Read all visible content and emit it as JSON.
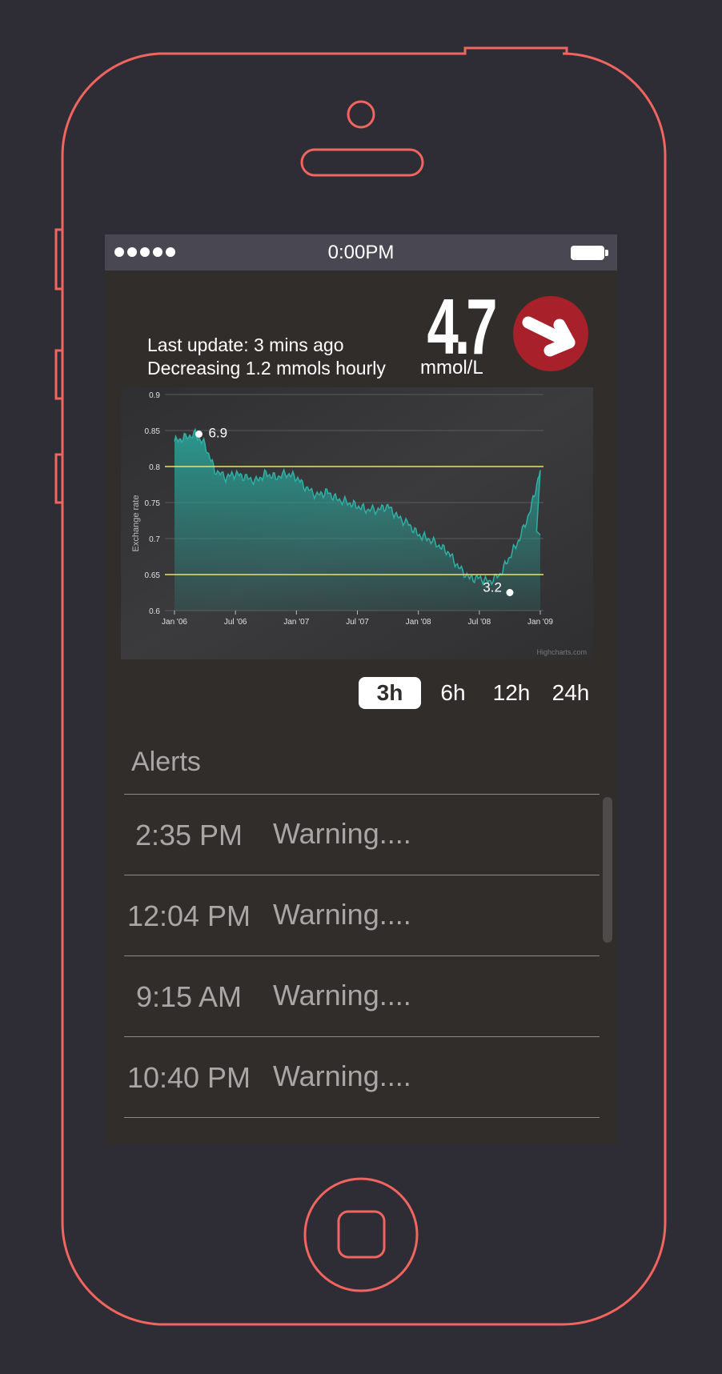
{
  "status_bar": {
    "time": "0:00PM",
    "signal_bars": 5
  },
  "reading": {
    "last_update": "Last update: 3 mins ago",
    "trend_text": "Decreasing 1.2 mmols hourly",
    "value": "4.7",
    "unit": "mmol/L",
    "trend_icon": "arrow-down-right-icon"
  },
  "chart_data": {
    "type": "area",
    "ylabel": "Exchange rate",
    "credit": "Highcharts.com",
    "x_ticks": [
      "Jan '06",
      "Jul '06",
      "Jan '07",
      "Jul '07",
      "Jan '08",
      "Jul '08",
      "Jan '09"
    ],
    "ylim": [
      0.6,
      0.9
    ],
    "y_ticks": [
      "0.9",
      "0.85",
      "0.8",
      "0.75",
      "0.7",
      "0.65",
      "0.6"
    ],
    "threshold_lines": [
      0.8,
      0.65
    ],
    "x": [
      2006.0,
      2006.08,
      2006.17,
      2006.25,
      2006.33,
      2006.42,
      2006.5,
      2006.58,
      2006.67,
      2006.75,
      2006.83,
      2006.92,
      2007.0,
      2007.08,
      2007.17,
      2007.25,
      2007.33,
      2007.42,
      2007.5,
      2007.58,
      2007.67,
      2007.75,
      2007.83,
      2007.92,
      2008.0,
      2008.08,
      2008.17,
      2008.25,
      2008.33,
      2008.42,
      2008.5,
      2008.58,
      2008.67,
      2008.75,
      2008.83,
      2008.92,
      2009.0
    ],
    "y": [
      0.835,
      0.84,
      0.845,
      0.83,
      0.795,
      0.785,
      0.79,
      0.785,
      0.78,
      0.79,
      0.785,
      0.79,
      0.785,
      0.77,
      0.76,
      0.765,
      0.755,
      0.75,
      0.745,
      0.74,
      0.74,
      0.745,
      0.73,
      0.72,
      0.705,
      0.7,
      0.69,
      0.68,
      0.66,
      0.645,
      0.645,
      0.64,
      0.65,
      0.675,
      0.7,
      0.74,
      0.795
    ],
    "annotations": [
      {
        "label": "6.9",
        "x": 2006.2,
        "y": 0.845
      },
      {
        "label": "3.2",
        "x": 2008.75,
        "y": 0.625
      }
    ]
  },
  "time_ranges": [
    "3h",
    "6h",
    "12h",
    "24h"
  ],
  "selected_range": "3h",
  "alerts": {
    "title": "Alerts",
    "items": [
      {
        "time": "2:35 PM",
        "message": "Warning...."
      },
      {
        "time": "12:04 PM",
        "message": "Warning...."
      },
      {
        "time": "9:15 AM",
        "message": "Warning...."
      },
      {
        "time": "10:40 PM",
        "message": "Warning...."
      }
    ]
  },
  "colors": {
    "outline": "#f2655f",
    "background": "#2e2d36",
    "screen": "#312d2a",
    "chart_fill": "#2a9d93",
    "threshold": "#e6e36f",
    "badge": "#a8202a"
  }
}
